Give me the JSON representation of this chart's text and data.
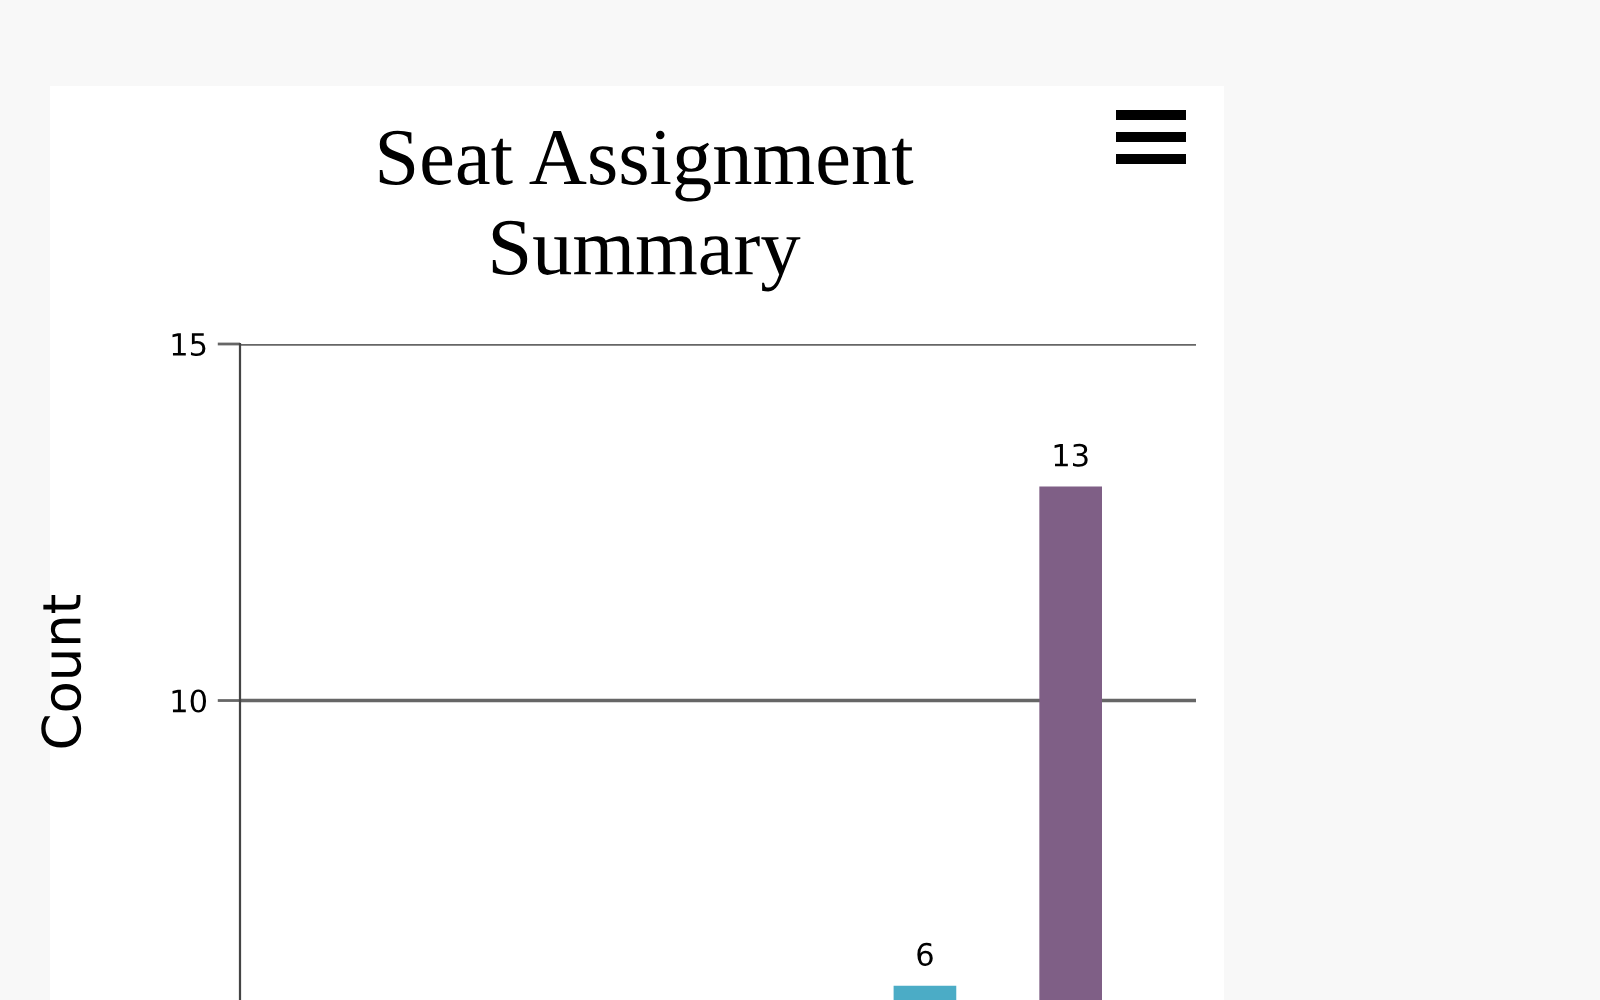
{
  "chart_data": {
    "type": "bar",
    "title": "Seat Assignment\nSummary",
    "ylabel": "Count",
    "categories": [
      null,
      null,
      null,
      null
    ],
    "values": [
      null,
      null,
      6,
      13
    ],
    "colors": [
      "#4bacc6",
      "#4bacc6",
      "#4bacc6",
      "#7f5f86"
    ],
    "ylim": [
      5.8,
      15
    ],
    "yticks": [
      10,
      15
    ],
    "grid": "y",
    "data_labels": true,
    "tick_labels": "y"
  }
}
